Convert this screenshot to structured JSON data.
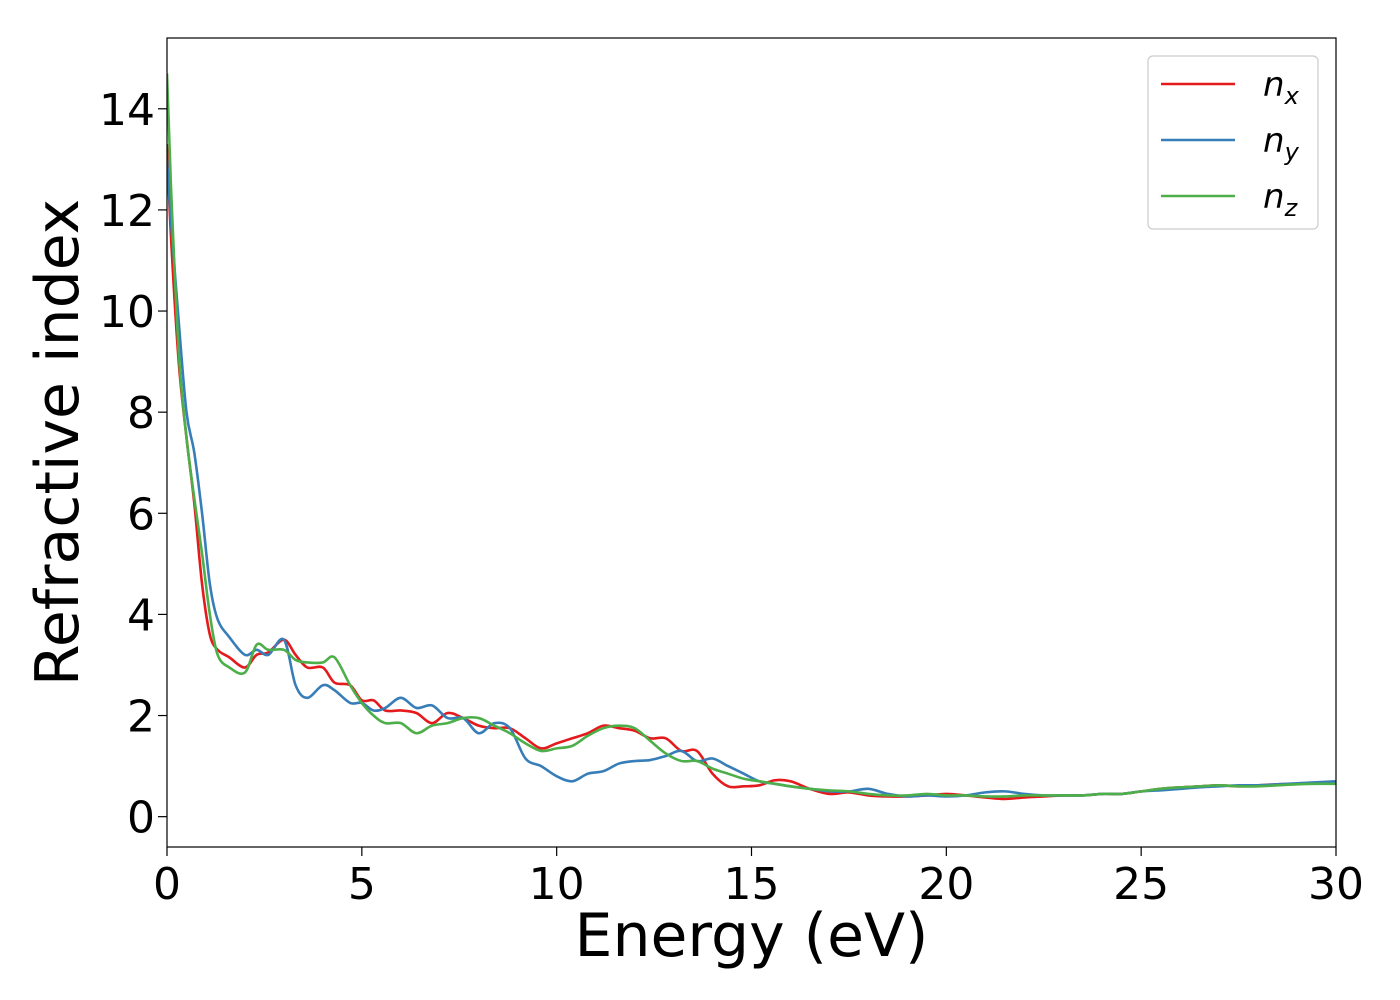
{
  "chart_data": {
    "type": "line",
    "title": "",
    "xlabel": "Energy (eV)",
    "ylabel": "Refractive index",
    "xlim": [
      0,
      30
    ],
    "ylim": [
      -0.6,
      15.4
    ],
    "xticks": [
      0,
      5,
      10,
      15,
      20,
      25,
      30
    ],
    "yticks": [
      0,
      2,
      4,
      6,
      8,
      10,
      12,
      14
    ],
    "grid": false,
    "legend_position": "top-right",
    "series": [
      {
        "name": "n",
        "subscript": "x",
        "color": "#e41a1c",
        "x": [
          0,
          0.1,
          0.3,
          0.5,
          0.7,
          0.9,
          1.1,
          1.3,
          1.6,
          2.0,
          2.3,
          2.6,
          3.0,
          3.3,
          3.6,
          4.0,
          4.3,
          4.7,
          5.0,
          5.3,
          5.6,
          6.0,
          6.4,
          6.8,
          7.2,
          7.6,
          8.0,
          8.4,
          8.8,
          9.2,
          9.6,
          10.0,
          10.4,
          10.8,
          11.2,
          11.6,
          12.0,
          12.4,
          12.8,
          13.2,
          13.6,
          14.0,
          14.4,
          14.8,
          15.2,
          15.6,
          16.0,
          16.5,
          17.0,
          17.5,
          18.0,
          18.5,
          19.0,
          19.5,
          20.0,
          20.5,
          21.0,
          21.5,
          22.0,
          22.5,
          23.0,
          23.5,
          24.0,
          24.5,
          25.0,
          25.5,
          26.0,
          26.5,
          27.0,
          27.5,
          28.0,
          28.5,
          29.0,
          29.5,
          30.0
        ],
        "values": [
          13.3,
          11.5,
          9.0,
          7.5,
          6.2,
          4.6,
          3.6,
          3.3,
          3.15,
          2.95,
          3.2,
          3.25,
          3.5,
          3.2,
          2.95,
          2.95,
          2.65,
          2.6,
          2.3,
          2.3,
          2.1,
          2.1,
          2.05,
          1.85,
          2.05,
          1.95,
          1.8,
          1.75,
          1.75,
          1.55,
          1.35,
          1.45,
          1.55,
          1.65,
          1.8,
          1.75,
          1.7,
          1.55,
          1.55,
          1.3,
          1.3,
          0.85,
          0.6,
          0.6,
          0.62,
          0.72,
          0.7,
          0.55,
          0.45,
          0.48,
          0.42,
          0.4,
          0.4,
          0.42,
          0.45,
          0.42,
          0.38,
          0.35,
          0.38,
          0.4,
          0.42,
          0.42,
          0.45,
          0.45,
          0.5,
          0.55,
          0.58,
          0.6,
          0.62,
          0.6,
          0.62,
          0.64,
          0.65,
          0.66,
          0.66
        ]
      },
      {
        "name": "n",
        "subscript": "y",
        "color": "#377eb8",
        "x": [
          0,
          0.1,
          0.3,
          0.5,
          0.7,
          0.9,
          1.1,
          1.3,
          1.6,
          2.0,
          2.3,
          2.6,
          3.0,
          3.3,
          3.6,
          4.0,
          4.3,
          4.7,
          5.0,
          5.3,
          5.6,
          6.0,
          6.4,
          6.8,
          7.2,
          7.6,
          8.0,
          8.4,
          8.8,
          9.2,
          9.6,
          10.0,
          10.4,
          10.8,
          11.2,
          11.6,
          12.0,
          12.4,
          12.8,
          13.2,
          13.6,
          14.0,
          14.4,
          14.8,
          15.2,
          15.6,
          16.0,
          16.5,
          17.0,
          17.5,
          18.0,
          18.5,
          19.0,
          19.5,
          20.0,
          20.5,
          21.0,
          21.5,
          22.0,
          22.5,
          23.0,
          23.5,
          24.0,
          24.5,
          25.0,
          25.5,
          26.0,
          26.5,
          27.0,
          27.5,
          28.0,
          28.5,
          29.0,
          29.5,
          30.0
        ],
        "values": [
          13.0,
          11.8,
          9.8,
          8.0,
          7.2,
          6.0,
          4.6,
          3.9,
          3.55,
          3.2,
          3.3,
          3.2,
          3.5,
          2.6,
          2.35,
          2.6,
          2.5,
          2.25,
          2.25,
          2.1,
          2.15,
          2.35,
          2.15,
          2.2,
          1.95,
          1.95,
          1.65,
          1.85,
          1.75,
          1.15,
          1.0,
          0.8,
          0.7,
          0.85,
          0.9,
          1.05,
          1.1,
          1.12,
          1.2,
          1.3,
          1.1,
          1.15,
          1.0,
          0.85,
          0.7,
          0.65,
          0.6,
          0.55,
          0.5,
          0.5,
          0.55,
          0.45,
          0.4,
          0.42,
          0.4,
          0.42,
          0.48,
          0.5,
          0.45,
          0.42,
          0.42,
          0.42,
          0.45,
          0.45,
          0.5,
          0.52,
          0.55,
          0.58,
          0.6,
          0.62,
          0.62,
          0.64,
          0.66,
          0.68,
          0.7
        ]
      },
      {
        "name": "n",
        "subscript": "z",
        "color": "#4daf4a",
        "x": [
          0,
          0.1,
          0.3,
          0.5,
          0.7,
          0.9,
          1.1,
          1.3,
          1.6,
          2.0,
          2.3,
          2.6,
          3.0,
          3.3,
          3.6,
          4.0,
          4.3,
          4.7,
          5.0,
          5.3,
          5.6,
          6.0,
          6.4,
          6.8,
          7.2,
          7.6,
          8.0,
          8.4,
          8.8,
          9.2,
          9.6,
          10.0,
          10.4,
          10.8,
          11.2,
          11.6,
          12.0,
          12.4,
          12.8,
          13.2,
          13.6,
          14.0,
          14.4,
          14.8,
          15.2,
          15.6,
          16.0,
          16.5,
          17.0,
          17.5,
          18.0,
          18.5,
          19.0,
          19.5,
          20.0,
          20.5,
          21.0,
          21.5,
          22.0,
          22.5,
          23.0,
          23.5,
          24.0,
          24.5,
          25.0,
          25.5,
          26.0,
          26.5,
          27.0,
          27.5,
          28.0,
          28.5,
          29.0,
          29.5,
          30.0
        ],
        "values": [
          14.7,
          12.5,
          9.2,
          7.5,
          6.3,
          5.2,
          4.0,
          3.2,
          2.95,
          2.85,
          3.4,
          3.3,
          3.3,
          3.1,
          3.05,
          3.05,
          3.15,
          2.6,
          2.25,
          2.0,
          1.85,
          1.85,
          1.65,
          1.8,
          1.85,
          1.95,
          1.95,
          1.8,
          1.65,
          1.45,
          1.3,
          1.35,
          1.4,
          1.6,
          1.75,
          1.8,
          1.75,
          1.5,
          1.25,
          1.1,
          1.1,
          0.95,
          0.85,
          0.75,
          0.7,
          0.65,
          0.6,
          0.55,
          0.52,
          0.5,
          0.45,
          0.42,
          0.42,
          0.45,
          0.42,
          0.42,
          0.4,
          0.4,
          0.42,
          0.42,
          0.42,
          0.42,
          0.45,
          0.45,
          0.5,
          0.55,
          0.58,
          0.6,
          0.62,
          0.6,
          0.6,
          0.62,
          0.64,
          0.65,
          0.65
        ]
      }
    ]
  }
}
